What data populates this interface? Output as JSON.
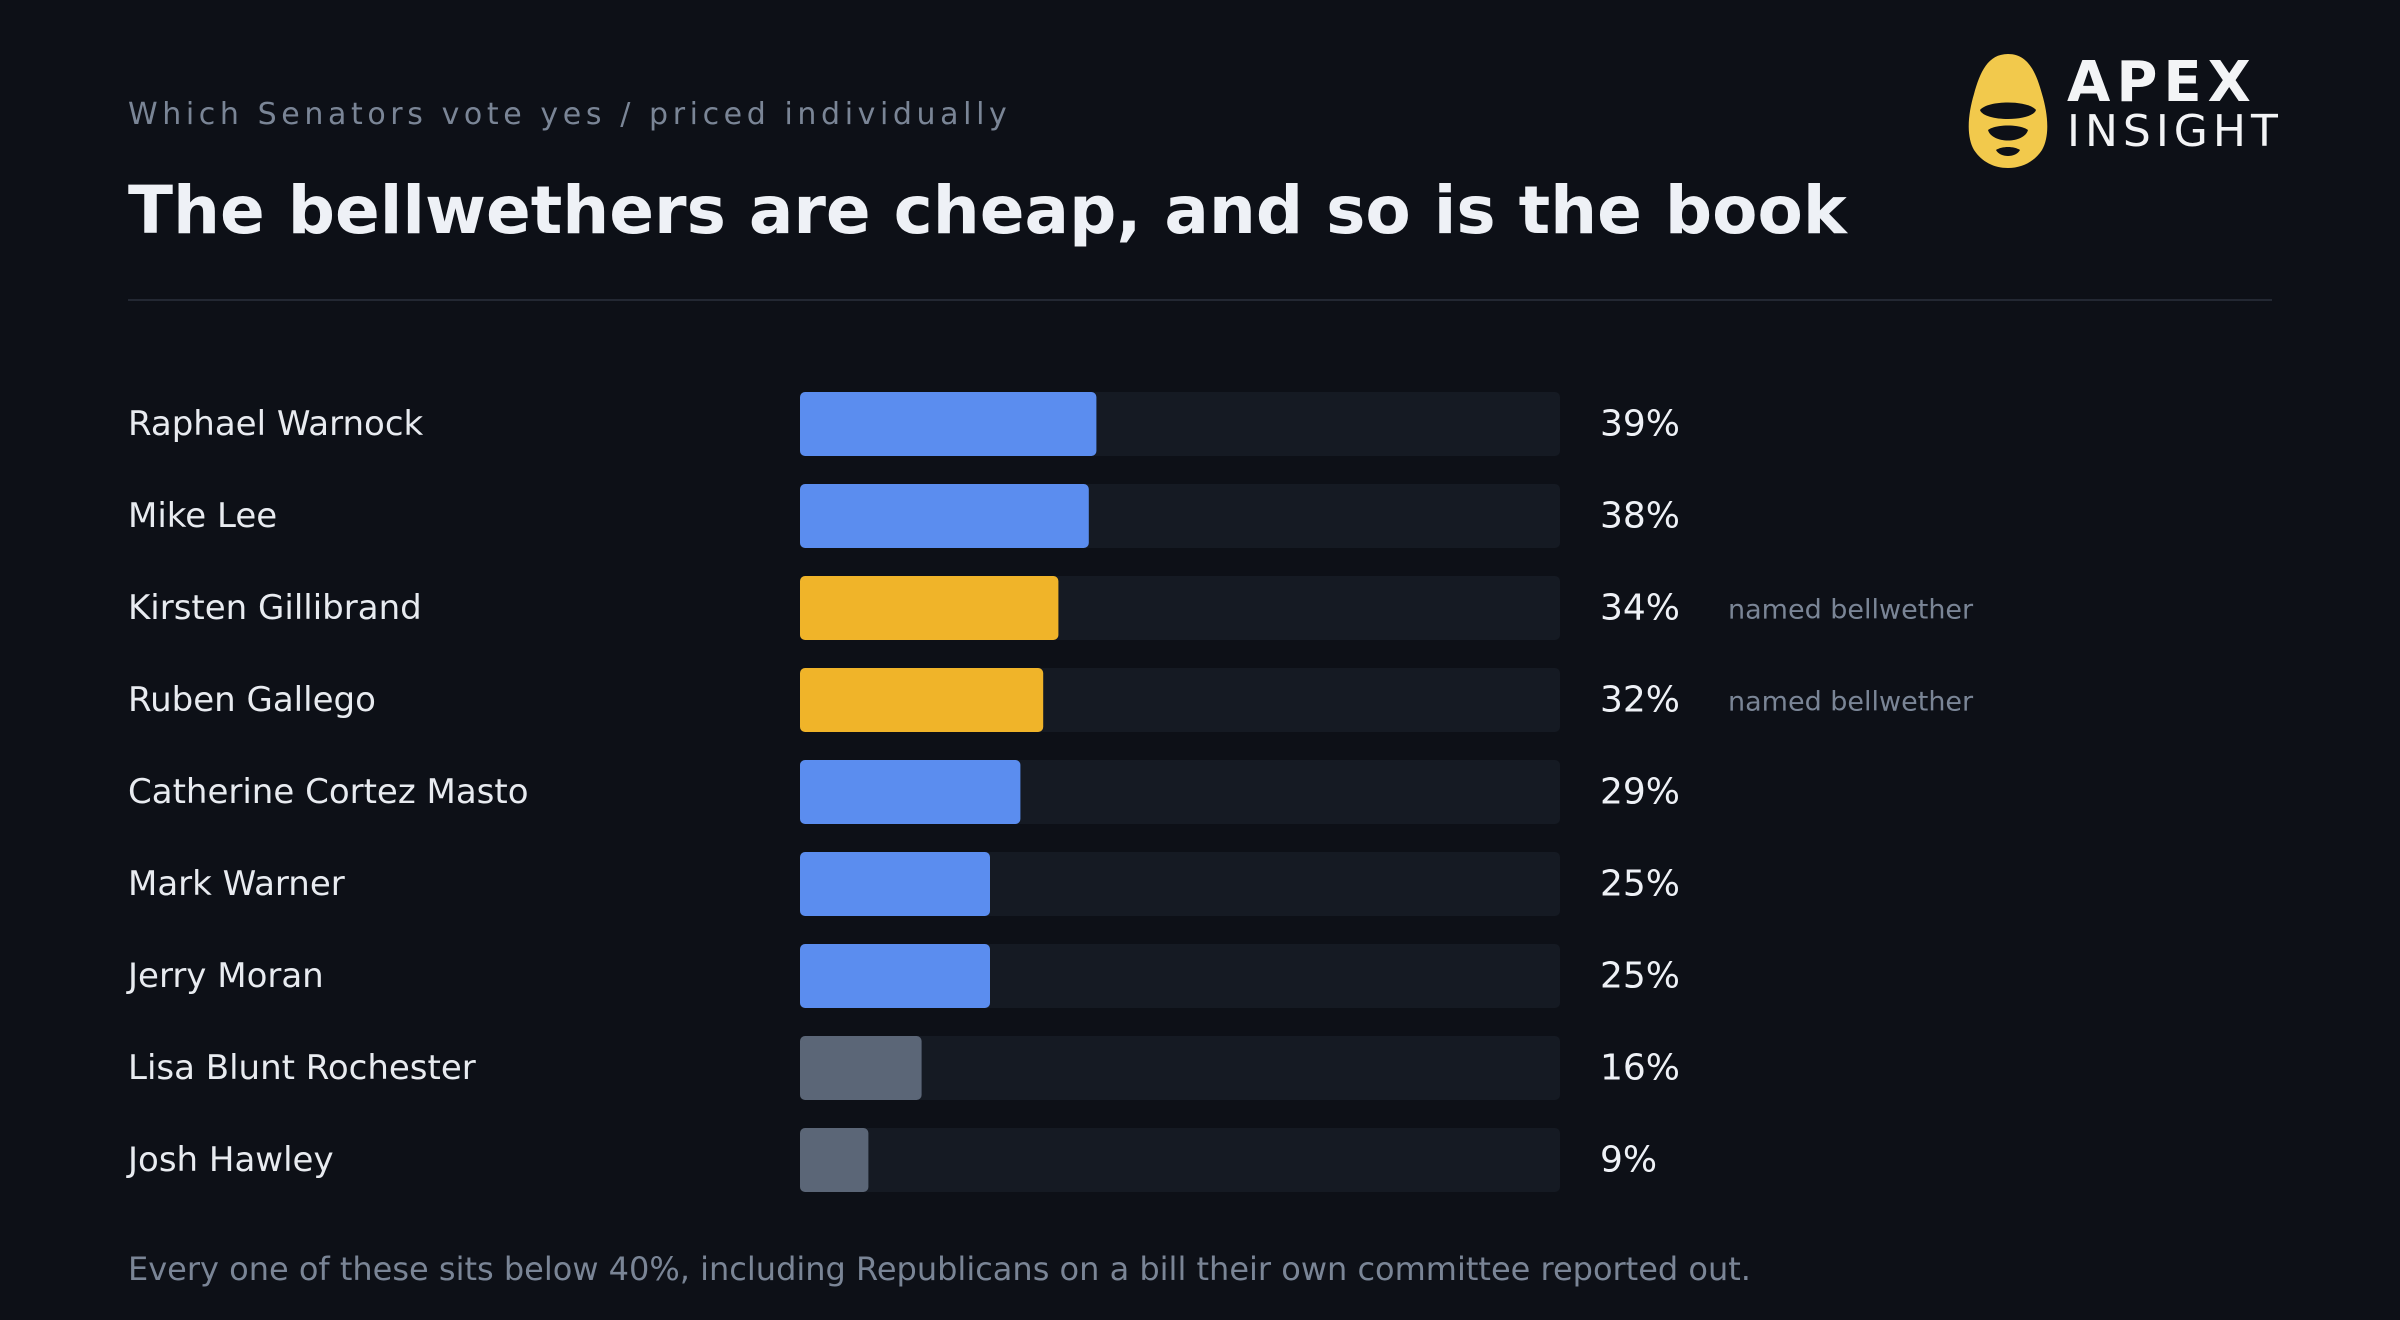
{
  "header": {
    "eyebrow": "Which Senators vote yes / priced individually",
    "title": "The bellwethers are cheap, and so is the book"
  },
  "logo": {
    "line1": "APEX",
    "line2": "INSIGHT",
    "icon": "helmet-icon",
    "color": "#f2c94c"
  },
  "colors": {
    "default": "#5b8def",
    "bellwether": "#f0b429",
    "low": "#5b6677",
    "track": "#151a23"
  },
  "chart_data": {
    "type": "bar",
    "orientation": "horizontal",
    "categories": [
      "Raphael Warnock",
      "Mike Lee",
      "Kirsten Gillibrand",
      "Ruben Gallego",
      "Catherine Cortez Masto",
      "Mark Warner",
      "Jerry Moran",
      "Lisa Blunt Rochester",
      "Josh Hawley"
    ],
    "values": [
      39,
      38,
      34,
      32,
      29,
      25,
      25,
      16,
      9
    ],
    "value_labels": [
      "39%",
      "38%",
      "34%",
      "32%",
      "29%",
      "25%",
      "25%",
      "16%",
      "9%"
    ],
    "bar_color_keys": [
      "default",
      "default",
      "bellwether",
      "bellwether",
      "default",
      "default",
      "default",
      "low",
      "low"
    ],
    "annotations": [
      "",
      "",
      "named bellwether",
      "named bellwether",
      "",
      "",
      "",
      "",
      ""
    ],
    "xlim": [
      0,
      100
    ],
    "unit": "%",
    "grid": false,
    "legend": "none"
  },
  "footnote": "Every one of these sits below 40%, including Republicans on a bill their own committee reported out."
}
